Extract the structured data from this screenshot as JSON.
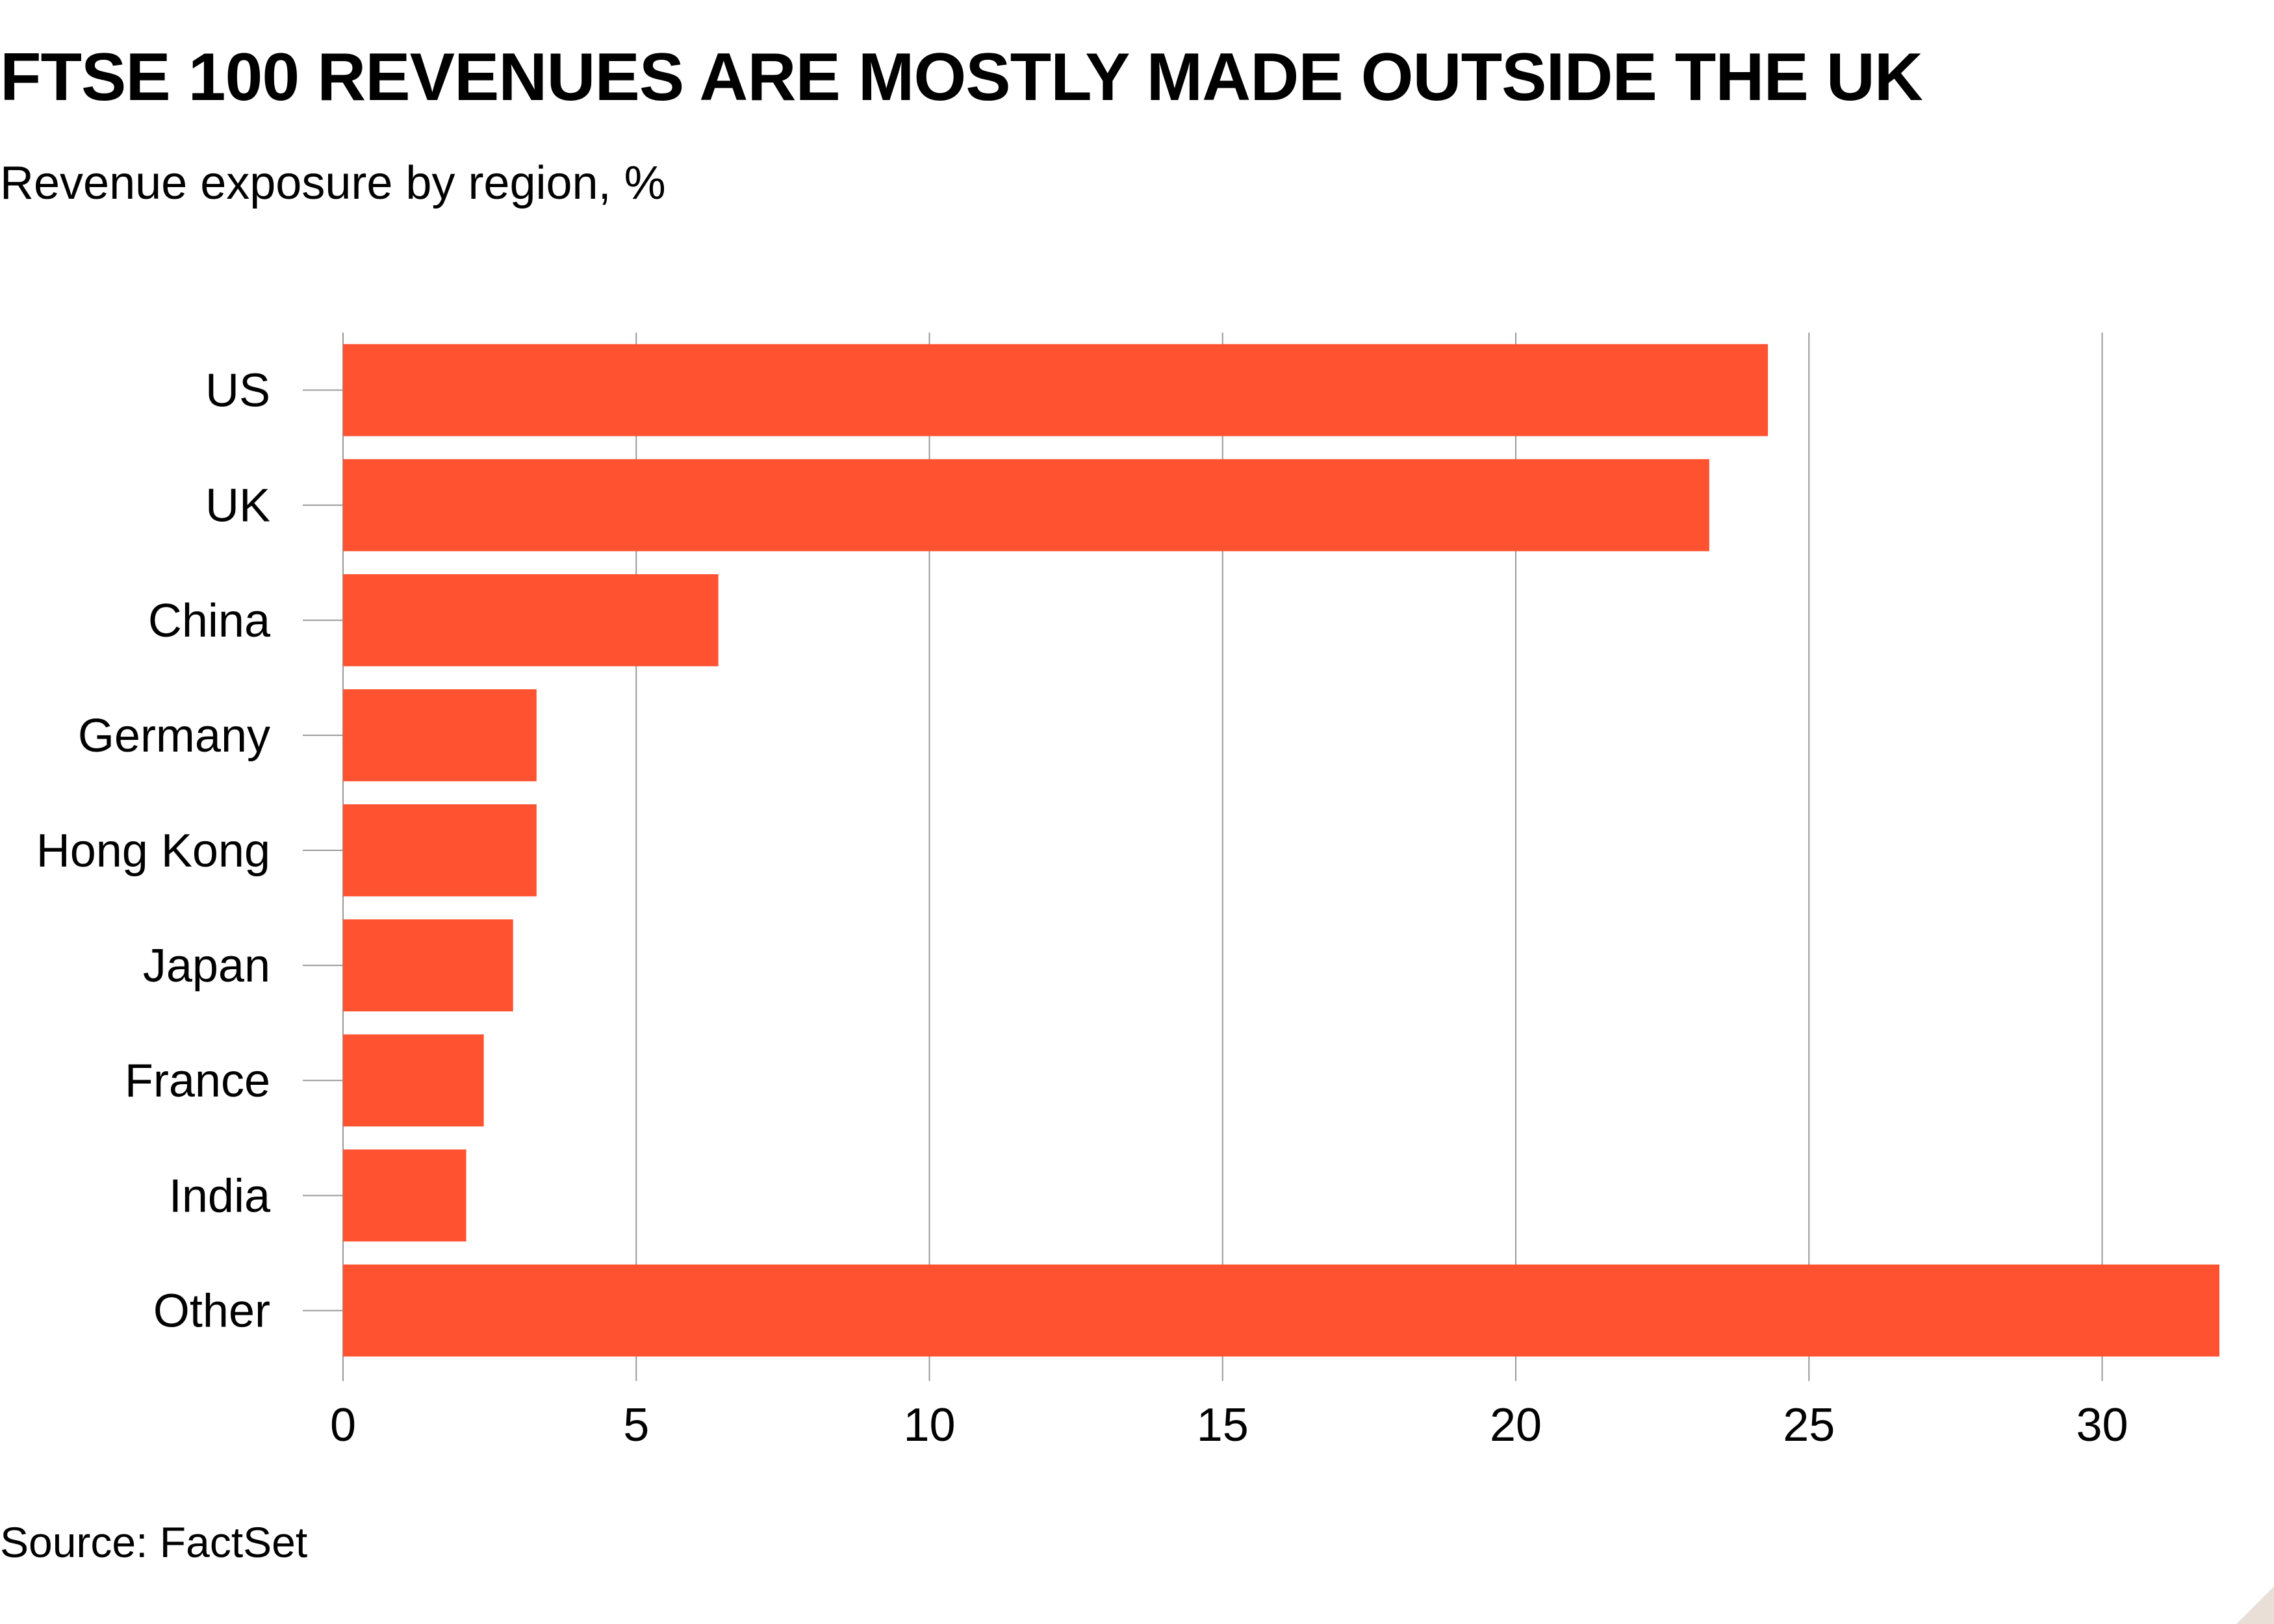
{
  "chart_data": {
    "type": "bar",
    "orientation": "horizontal",
    "title": "FTSE 100 REVENUES ARE MOSTLY MADE OUTSIDE THE UK",
    "subtitle": "Revenue exposure by region, %",
    "source": "Source: FactSet",
    "categories": [
      "US",
      "UK",
      "China",
      "Germany",
      "Hong Kong",
      "Japan",
      "France",
      "India",
      "Other"
    ],
    "values": [
      24.3,
      23.3,
      6.4,
      3.3,
      3.3,
      2.9,
      2.4,
      2.1,
      32.0
    ],
    "xlim": [
      0,
      32
    ],
    "xticks": [
      0,
      5,
      10,
      15,
      20,
      25,
      30
    ],
    "grid": true,
    "bar_color": "#ff5230",
    "grid_color": "#999999"
  }
}
